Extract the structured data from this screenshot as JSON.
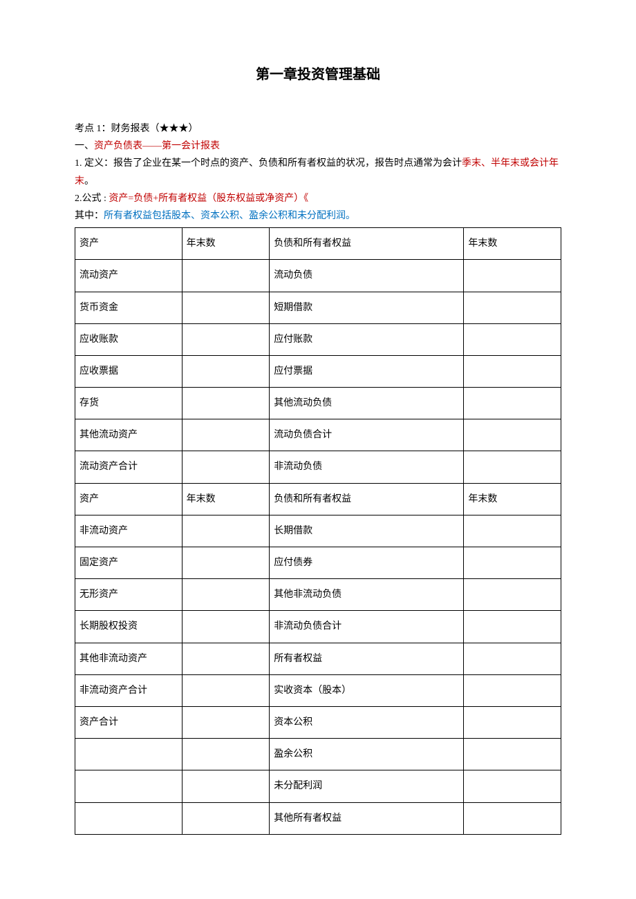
{
  "title": "第一章投资管理基础",
  "heading1": "考点 1：财务报表（★★★）",
  "section1_label": "一、",
  "section1_title": "资产负债表――第一会计报表",
  "point1_prefix": "1. 定义：报告了企业在某一个时点的资产、负债和所有者权益的状况，报告时点通常为会计",
  "point1_red": "季末、半年末或会计年末",
  "point1_suffix": "。",
  "point2_prefix": "2.公式 : ",
  "point2_red": "资产=负债+所有者权益（股东权益或净资产）《",
  "point3_prefix": "其中：",
  "point3_blue": "所有者权益包括股本、资本公积、盈余公积和未分配利润。",
  "table": {
    "rows": [
      [
        "资产",
        "年末数",
        "负债和所有者权益",
        "年末数"
      ],
      [
        "流动资产",
        "",
        "流动负债",
        ""
      ],
      [
        "货币资金",
        "",
        "短期借款",
        ""
      ],
      [
        "应收账款",
        "",
        "应付账款",
        ""
      ],
      [
        "应收票据",
        "",
        "应付票据",
        ""
      ],
      [
        "存货",
        "",
        "其他流动负债",
        ""
      ],
      [
        "其他流动资产",
        "",
        "流动负债合计",
        ""
      ],
      [
        "流动资产合计",
        "",
        "非流动负债",
        ""
      ],
      [
        "资产",
        "年末数",
        "负债和所有者权益",
        "年末数"
      ],
      [
        "非流动资产",
        "",
        "长期借款",
        ""
      ],
      [
        "固定资产",
        "",
        "应付债券",
        ""
      ],
      [
        "无形资产",
        "",
        "其他非流动负债",
        ""
      ],
      [
        "长期股权投资",
        "",
        "非流动负债合计",
        ""
      ],
      [
        "其他非流动资产",
        "",
        "所有者权益",
        ""
      ],
      [
        "非流动资产合计",
        "",
        "实收资本（股本）",
        ""
      ],
      [
        "资产合计",
        "",
        "资本公积",
        ""
      ],
      [
        "",
        "",
        "盈余公积",
        ""
      ],
      [
        "",
        "",
        "未分配利润",
        ""
      ],
      [
        "",
        "",
        "其他所有者权益",
        ""
      ]
    ]
  }
}
